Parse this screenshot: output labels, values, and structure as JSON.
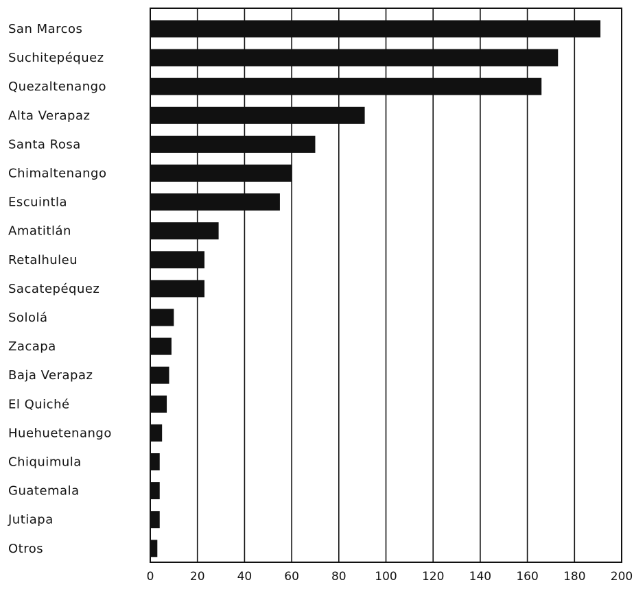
{
  "chart_data": {
    "type": "bar",
    "orientation": "horizontal",
    "title": "",
    "xlabel": "",
    "ylabel": "",
    "xlim": [
      0,
      200
    ],
    "grid": true,
    "categories": [
      "San Marcos",
      "Suchitepéquez",
      "Quezaltenango",
      "Alta Verapaz",
      "Santa Rosa",
      "Chimaltenango",
      "Escuintla",
      "Amatitlán",
      "Retalhuleu",
      "Sacatepéquez",
      "Sololá",
      "Zacapa",
      "Baja Verapaz",
      "El Quiché",
      "Huehuetenango",
      "Chiquimula",
      "Guatemala",
      "Jutiapa",
      "Otros"
    ],
    "values": [
      191,
      173,
      166,
      91,
      70,
      60,
      55,
      29,
      23,
      23,
      10,
      9,
      8,
      7,
      5,
      4,
      4,
      4,
      3
    ],
    "ticks": [
      "0",
      "20",
      "40",
      "60",
      "80",
      "100",
      "120",
      "140",
      "160",
      "180",
      "200"
    ],
    "colors": {
      "bar": "#111111",
      "grid": "#111111",
      "background": "#ffffff"
    }
  }
}
